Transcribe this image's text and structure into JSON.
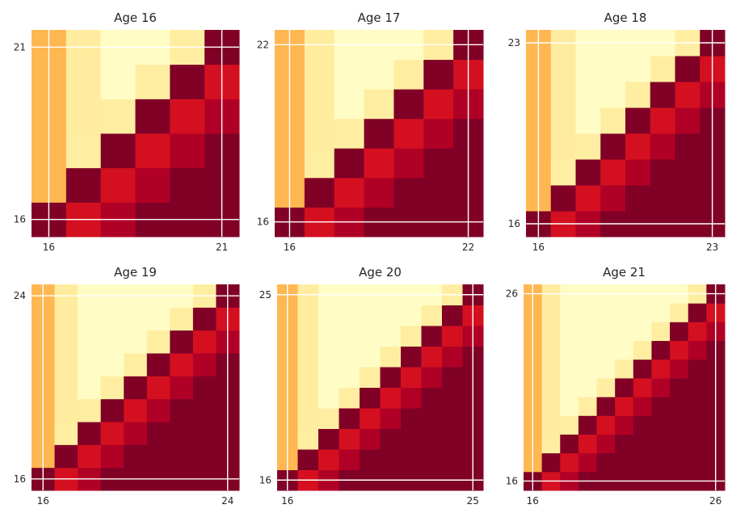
{
  "chart_data": [
    {
      "type": "heatmap",
      "title": "Age 16",
      "min_age": 16,
      "max_age": 21,
      "xticks": [
        "16",
        "21"
      ],
      "yticks": [
        "16",
        "21"
      ],
      "grid": true,
      "colormap": "YlOrRd"
    },
    {
      "type": "heatmap",
      "title": "Age 17",
      "min_age": 16,
      "max_age": 22,
      "xticks": [
        "16",
        "22"
      ],
      "yticks": [
        "16",
        "22"
      ],
      "grid": true,
      "colormap": "YlOrRd"
    },
    {
      "type": "heatmap",
      "title": "Age 18",
      "min_age": 16,
      "max_age": 23,
      "xticks": [
        "16",
        "23"
      ],
      "yticks": [
        "16",
        "23"
      ],
      "grid": true,
      "colormap": "YlOrRd"
    },
    {
      "type": "heatmap",
      "title": "Age 19",
      "min_age": 16,
      "max_age": 24,
      "xticks": [
        "16",
        "24"
      ],
      "yticks": [
        "16",
        "24"
      ],
      "grid": true,
      "colormap": "YlOrRd"
    },
    {
      "type": "heatmap",
      "title": "Age 20",
      "min_age": 16,
      "max_age": 25,
      "xticks": [
        "16",
        "25"
      ],
      "yticks": [
        "16",
        "25"
      ],
      "grid": true,
      "colormap": "YlOrRd"
    },
    {
      "type": "heatmap",
      "title": "Age 21",
      "min_age": 16,
      "max_age": 26,
      "xticks": [
        "16",
        "26"
      ],
      "yticks": [
        "16",
        "26"
      ],
      "grid": true,
      "colormap": "YlOrRd"
    }
  ],
  "colors": {
    "gridline": "#ffffff",
    "text": "#262626",
    "colormap_stops": [
      "#ffffcc",
      "#ffeda0",
      "#fed976",
      "#feb24c",
      "#fd8d3c",
      "#fc4e2a",
      "#e31a1c",
      "#bd0026",
      "#800026"
    ]
  }
}
